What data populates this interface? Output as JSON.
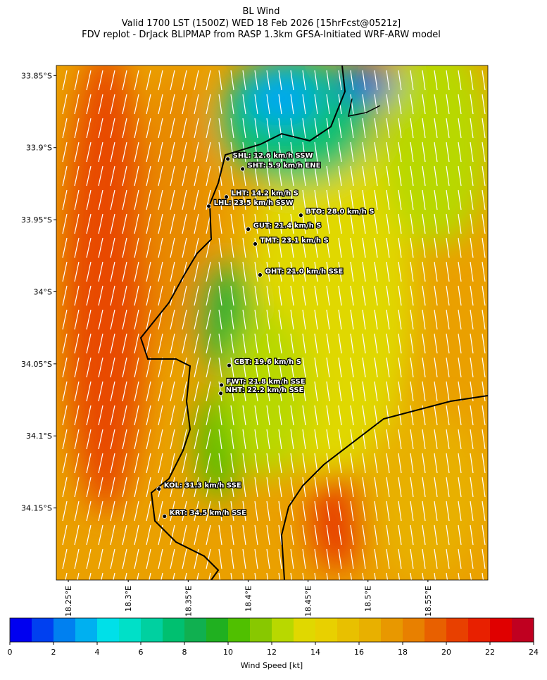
{
  "chart_data": {
    "type": "map",
    "title": [
      "BL Wind",
      "Valid 1700 LST (1500Z) WED 18 Feb 2026 [15hrFcst@0521z]",
      "FDV replot - DrJack BLIPMAP from RASP 1.3km GFSA-Initiated WRF-ARW model"
    ],
    "xlim": [
      18.24,
      18.6
    ],
    "ylim": [
      -34.2,
      -33.843
    ],
    "xticks": [
      {
        "value": 18.25,
        "label": "18.25°E"
      },
      {
        "value": 18.3,
        "label": "18.3°E"
      },
      {
        "value": 18.35,
        "label": "18.35°E"
      },
      {
        "value": 18.4,
        "label": "18.4°E"
      },
      {
        "value": 18.45,
        "label": "18.45°E"
      },
      {
        "value": 18.5,
        "label": "18.5°E"
      },
      {
        "value": 18.55,
        "label": "18.55°E"
      }
    ],
    "yticks": [
      {
        "value": -33.85,
        "label": "33.85°S"
      },
      {
        "value": -33.9,
        "label": "33.9°S"
      },
      {
        "value": -33.95,
        "label": "33.95°S"
      },
      {
        "value": -34,
        "label": "34°S"
      },
      {
        "value": -34.05,
        "label": "34.05°S"
      },
      {
        "value": -34.1,
        "label": "34.1°S"
      },
      {
        "value": -34.15,
        "label": "34.15°S"
      }
    ],
    "stations": [
      {
        "label": "SHL: 12.6 km/h SSW",
        "lon": 18.3831,
        "lat": -33.9079
      },
      {
        "label": "SHT: 5.9 km/h ENE",
        "lon": 18.3954,
        "lat": -33.9148
      },
      {
        "label": "LHT: 14.2 km/h S",
        "lon": 18.3819,
        "lat": -33.9342
      },
      {
        "label": "LHL: 23.5 km/h SSW",
        "lon": 18.3672,
        "lat": -33.9406
      },
      {
        "label": "BTO: 28.0 km/h S",
        "lon": 18.444,
        "lat": -33.9469
      },
      {
        "label": "GUT: 21.4 km/h S",
        "lon": 18.4001,
        "lat": -33.9566
      },
      {
        "label": "TMT: 23.1 km/h S",
        "lon": 18.4059,
        "lat": -33.9668
      },
      {
        "label": "OHT: 21.0 km/h SSE",
        "lon": 18.41,
        "lat": -33.9883
      },
      {
        "label": "CBT: 19.6 km/h S",
        "lon": 18.3842,
        "lat": -34.0511
      },
      {
        "label": "FWT: 21.8 km/h SSE",
        "lon": 18.3778,
        "lat": -34.0647
      },
      {
        "label": "NHT: 22.2 km/h SSE",
        "lon": 18.3772,
        "lat": -34.0705
      },
      {
        "label": "KOL: 31.3 km/h SSE",
        "lon": 18.3256,
        "lat": -34.1368
      },
      {
        "label": "KRT: 34.5 km/h SSE",
        "lon": 18.3303,
        "lat": -34.1558
      }
    ],
    "colorbar": {
      "label": "Wind Speed [kt]",
      "lim": [
        0,
        24
      ],
      "ticks": [
        0,
        2,
        4,
        6,
        8,
        10,
        12,
        14,
        16,
        18,
        20,
        22,
        24
      ],
      "colors": [
        "#0000f0",
        "#0040f0",
        "#0080f0",
        "#00b0f0",
        "#00e0e8",
        "#00e0c8",
        "#00d0a0",
        "#00c070",
        "#10b050",
        "#20b020",
        "#50c000",
        "#88c800",
        "#b8d800",
        "#e0d800",
        "#e8d000",
        "#e8c000",
        "#e8b000",
        "#e89800",
        "#e88000",
        "#e86000",
        "#e84000",
        "#e82000",
        "#e00000",
        "#c00020"
      ]
    }
  }
}
